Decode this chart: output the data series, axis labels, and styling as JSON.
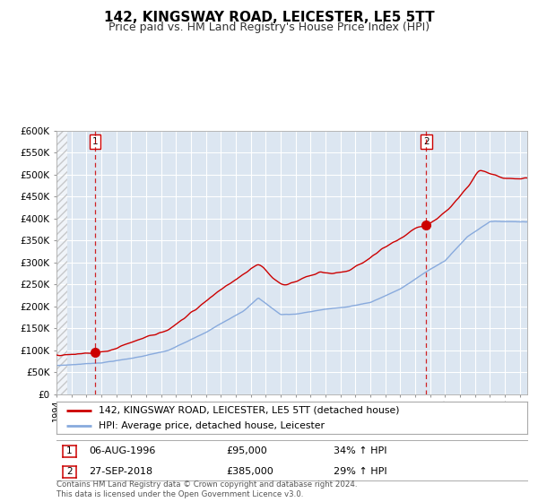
{
  "title": "142, KINGSWAY ROAD, LEICESTER, LE5 5TT",
  "subtitle": "Price paid vs. HM Land Registry's House Price Index (HPI)",
  "title_fontsize": 11,
  "subtitle_fontsize": 9,
  "background_color": "#dce6f1",
  "plot_bg_color": "#dce6f1",
  "fig_bg_color": "#ffffff",
  "ylim": [
    0,
    600000
  ],
  "legend_line1": "142, KINGSWAY ROAD, LEICESTER, LE5 5TT (detached house)",
  "legend_line2": "HPI: Average price, detached house, Leicester",
  "annotation1_label": "1",
  "annotation1_date": "06-AUG-1996",
  "annotation1_price": "£95,000",
  "annotation1_hpi": "34% ↑ HPI",
  "annotation1_year": 1996.58,
  "annotation1_value": 95000,
  "annotation2_label": "2",
  "annotation2_date": "27-SEP-2018",
  "annotation2_price": "£385,000",
  "annotation2_hpi": "29% ↑ HPI",
  "annotation2_year": 2018.73,
  "annotation2_value": 385000,
  "footer": "Contains HM Land Registry data © Crown copyright and database right 2024.\nThis data is licensed under the Open Government Licence v3.0.",
  "red_color": "#cc0000",
  "blue_color": "#88aadd",
  "grid_color": "#ffffff"
}
